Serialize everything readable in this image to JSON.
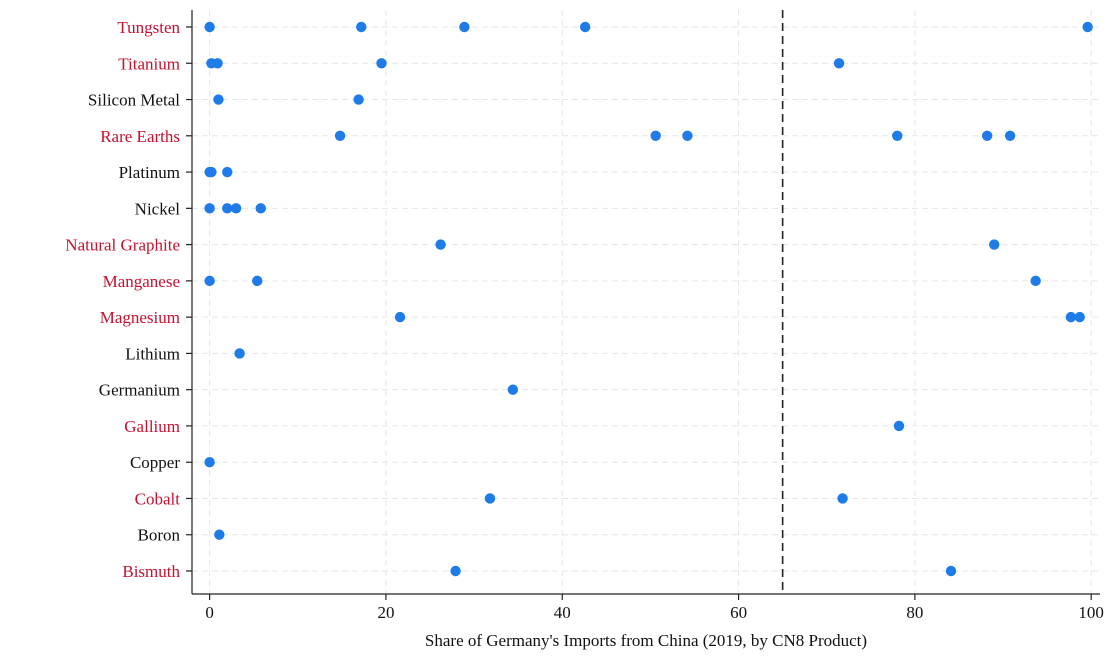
{
  "chart_data": {
    "type": "scatter",
    "title": "",
    "xlabel": "Share of Germany's Imports from China (2019, by CN8 Product)",
    "ylabel": "",
    "xlim": [
      -2,
      101
    ],
    "xticks": [
      0,
      20,
      40,
      60,
      80,
      100
    ],
    "xtick_labels": [
      "0",
      "20",
      "40",
      "60",
      "80",
      "100"
    ],
    "reference_line_x": 65,
    "grid": true,
    "colors": {
      "point": "#1f7be8",
      "highlight_label": "#c8102e",
      "normal_label": "#111111"
    },
    "categories": [
      {
        "name": "Tungsten",
        "highlight": true,
        "values": [
          0,
          17.2,
          28.9,
          42.6,
          99.6
        ]
      },
      {
        "name": "Titanium",
        "highlight": true,
        "values": [
          0.2,
          0.9,
          19.5,
          71.4
        ]
      },
      {
        "name": "Silicon Metal",
        "highlight": false,
        "values": [
          1.0,
          16.9
        ]
      },
      {
        "name": "Rare Earths",
        "highlight": true,
        "values": [
          14.8,
          50.6,
          54.2,
          78.0,
          88.2,
          90.8
        ]
      },
      {
        "name": "Platinum",
        "highlight": false,
        "values": [
          0,
          0.2,
          2.0
        ]
      },
      {
        "name": "Nickel",
        "highlight": false,
        "values": [
          0,
          2.0,
          3.0,
          5.8
        ]
      },
      {
        "name": "Natural Graphite",
        "highlight": true,
        "values": [
          26.2,
          89.0
        ]
      },
      {
        "name": "Manganese",
        "highlight": true,
        "values": [
          0,
          5.4,
          93.7
        ]
      },
      {
        "name": "Magnesium",
        "highlight": true,
        "values": [
          21.6,
          97.7,
          98.7
        ]
      },
      {
        "name": "Lithium",
        "highlight": false,
        "values": [
          3.4
        ]
      },
      {
        "name": "Germanium",
        "highlight": false,
        "values": [
          34.4
        ]
      },
      {
        "name": "Gallium",
        "highlight": true,
        "values": [
          78.2
        ]
      },
      {
        "name": "Copper",
        "highlight": false,
        "values": [
          0
        ]
      },
      {
        "name": "Cobalt",
        "highlight": true,
        "values": [
          31.8,
          71.8
        ]
      },
      {
        "name": "Boron",
        "highlight": false,
        "values": [
          1.1
        ]
      },
      {
        "name": "Bismuth",
        "highlight": true,
        "values": [
          27.9,
          84.1
        ]
      }
    ]
  }
}
